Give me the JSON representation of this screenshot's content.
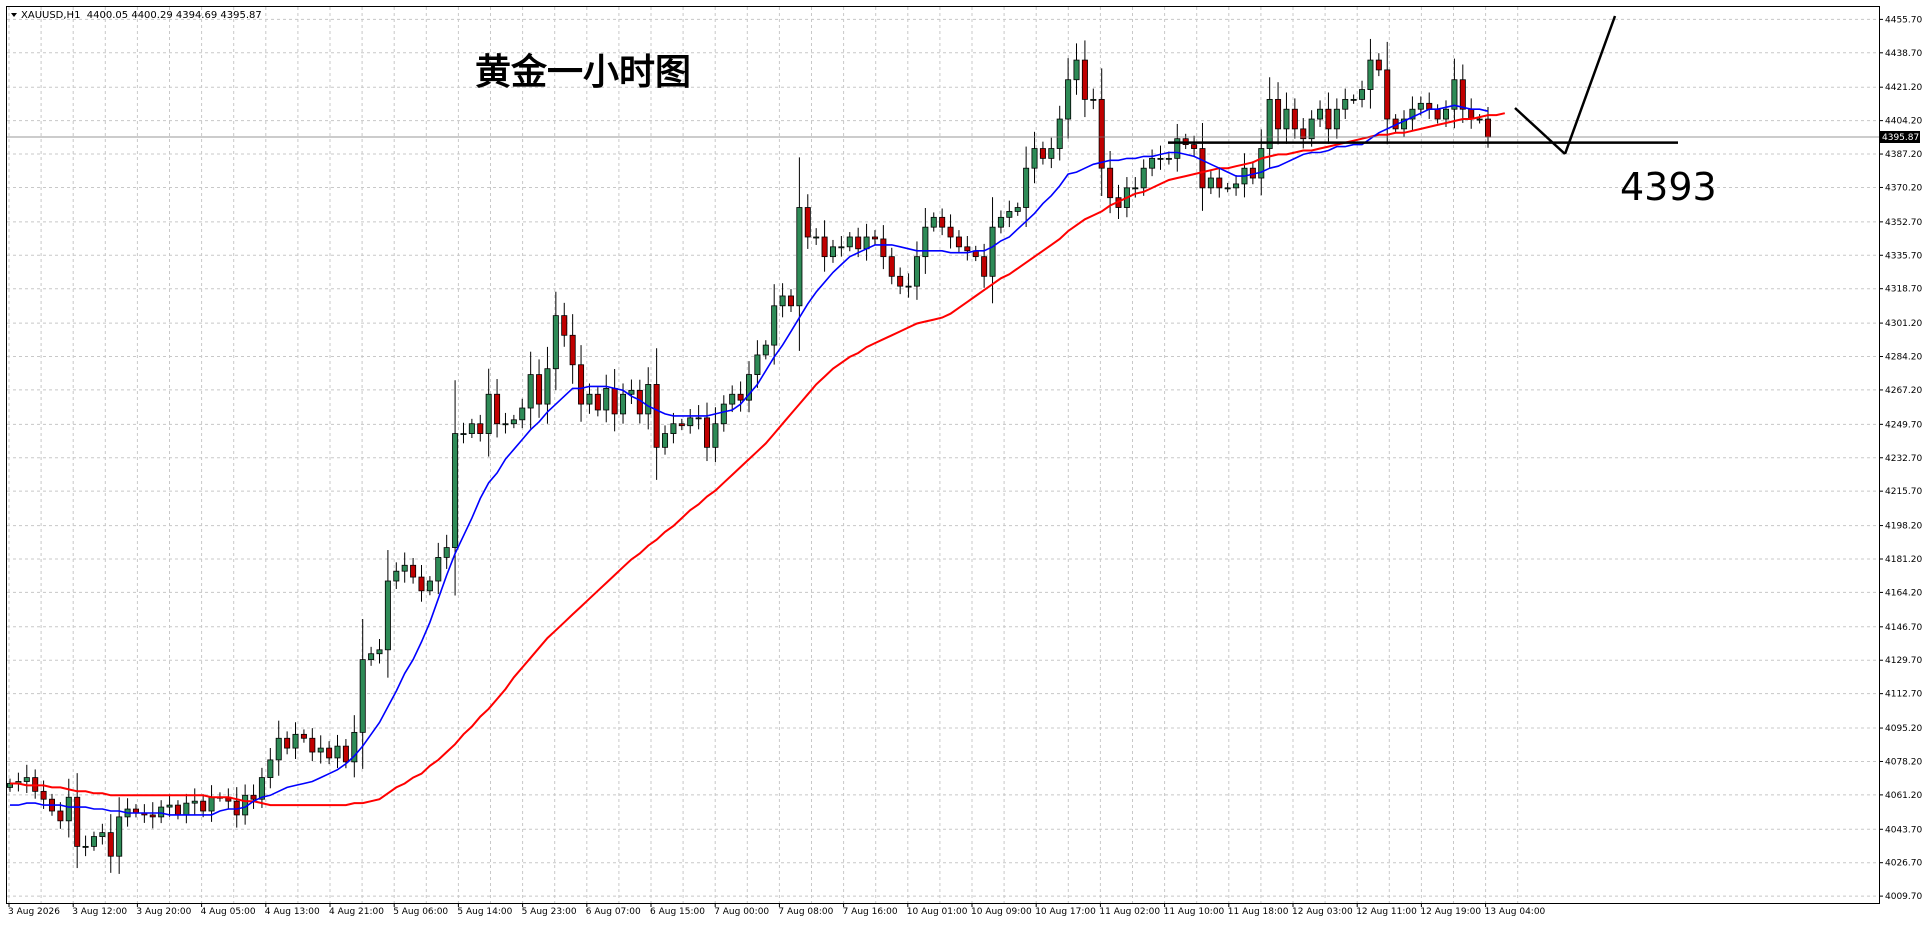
{
  "window": {
    "symbol_line": "XAUUSD,H1  4400.05 4400.29 4394.69 4395.87"
  },
  "annotations": {
    "title": "黄金一小时图",
    "level_label": "4393"
  },
  "colors": {
    "bull_body": "#2e8b57",
    "bear_body": "#c00000",
    "fast_ma": "#0000ff",
    "slow_ma": "#ff0000",
    "grid": "#c8c8c8",
    "price_tag_bg": "#000000",
    "price_tag_fg": "#ffffff"
  },
  "chart_data": {
    "type": "candlestick",
    "symbol": "XAUUSD",
    "timeframe": "H1",
    "ohlc_header": {
      "open": 4400.05,
      "high": 4400.29,
      "low": 4394.69,
      "close": 4395.87
    },
    "current_price": "4395.87",
    "ylim": [
      4006.2,
      4462.0
    ],
    "y_ticks": [
      "4455.70",
      "4438.70",
      "4421.20",
      "4404.20",
      "4387.20",
      "4370.20",
      "4352.70",
      "4335.70",
      "4318.70",
      "4301.20",
      "4284.20",
      "4267.20",
      "4249.70",
      "4232.70",
      "4215.70",
      "4198.20",
      "4181.20",
      "4164.20",
      "4146.70",
      "4129.70",
      "4112.70",
      "4095.20",
      "4078.20",
      "4061.20",
      "4043.70",
      "4026.70",
      "4009.70"
    ],
    "x_ticks": [
      "3 Aug 2026",
      "3 Aug 12:00",
      "3 Aug 20:00",
      "4 Aug 05:00",
      "4 Aug 13:00",
      "4 Aug 21:00",
      "5 Aug 06:00",
      "5 Aug 14:00",
      "5 Aug 23:00",
      "6 Aug 07:00",
      "6 Aug 15:00",
      "7 Aug 00:00",
      "7 Aug 08:00",
      "7 Aug 16:00",
      "10 Aug 01:00",
      "10 Aug 09:00",
      "10 Aug 17:00",
      "11 Aug 02:00",
      "11 Aug 10:00",
      "11 Aug 18:00",
      "12 Aug 03:00",
      "12 Aug 11:00",
      "12 Aug 19:00",
      "13 Aug 04:00"
    ],
    "closes": [
      4067,
      4068,
      4070,
      4063,
      4059,
      4053,
      4048,
      4060,
      4035,
      4035,
      4040,
      4042,
      4030,
      4050,
      4054,
      4052,
      4051,
      4050,
      4055,
      4056,
      4051,
      4057,
      4058,
      4053,
      4060,
      4060,
      4058,
      4051,
      4061,
      4059,
      4070,
      4079,
      4090,
      4085,
      4092,
      4090,
      4083,
      4085,
      4080,
      4086,
      4078,
      4093,
      4130,
      4133,
      4135,
      4170,
      4175,
      4178,
      4172,
      4165,
      4170,
      4182,
      4187,
      4245,
      4245,
      4250,
      4245,
      4265,
      4250,
      4250,
      4252,
      4258,
      4275,
      4260,
      4278,
      4305,
      4295,
      4280,
      4260,
      4265,
      4257,
      4268,
      4255,
      4265,
      4267,
      4255,
      4270,
      4238,
      4245,
      4250,
      4249,
      4253,
      4253,
      4238,
      4250,
      4260,
      4265,
      4262,
      4275,
      4285,
      4290,
      4310,
      4315,
      4310,
      4360,
      4345,
      4345,
      4335,
      4340,
      4340,
      4345,
      4339,
      4345,
      4344,
      4335,
      4325,
      4320,
      4320,
      4335,
      4350,
      4355,
      4350,
      4345,
      4340,
      4338,
      4335,
      4325,
      4350,
      4355,
      4358,
      4360,
      4380,
      4390,
      4385,
      4390,
      4405,
      4425,
      4435,
      4415,
      4415,
      4380,
      4365,
      4360,
      4370,
      4370,
      4380,
      4385,
      4385,
      4385,
      4395,
      4392,
      4390,
      4370,
      4375,
      4370,
      4370,
      4372,
      4380,
      4375,
      4390,
      4415,
      4400,
      4410,
      4400,
      4395,
      4405,
      4410,
      4400,
      4410,
      4415,
      4415,
      4420,
      4435,
      4430,
      4405,
      4400,
      4405,
      4410,
      4413,
      4410,
      4405,
      4410,
      4425,
      4410,
      4405,
      4405,
      4395.87
    ],
    "fast_ma": [
      4056,
      4056,
      4057,
      4057,
      4056,
      4056,
      4056,
      4055,
      4055,
      4055,
      4054,
      4054,
      4053,
      4053,
      4052,
      4052,
      4052,
      4052,
      4052,
      4051,
      4051,
      4051,
      4051,
      4051,
      4051,
      4053,
      4054,
      4054,
      4055,
      4058,
      4060,
      4061,
      4063,
      4065,
      4066,
      4067,
      4068,
      4070,
      4072,
      4074,
      4077,
      4081,
      4086,
      4092,
      4098,
      4106,
      4114,
      4123,
      4130,
      4139,
      4149,
      4161,
      4173,
      4184,
      4193,
      4202,
      4212,
      4220,
      4225,
      4232,
      4237,
      4242,
      4247,
      4251,
      4256,
      4260,
      4264,
      4268,
      4268,
      4269,
      4269,
      4269,
      4268,
      4267,
      4264,
      4262,
      4259,
      4257,
      4255,
      4254,
      4254,
      4254,
      4254,
      4254,
      4255,
      4256,
      4257,
      4260,
      4265,
      4270,
      4277,
      4284,
      4290,
      4297,
      4304,
      4311,
      4317,
      4322,
      4327,
      4331,
      4335,
      4337,
      4339,
      4341,
      4341,
      4341,
      4340,
      4339,
      4338,
      4338,
      4338,
      4338,
      4337,
      4337,
      4337,
      4338,
      4338,
      4340,
      4343,
      4345,
      4349,
      4353,
      4357,
      4362,
      4366,
      4371,
      4377,
      4378,
      4380,
      4382,
      4383,
      4384,
      4384,
      4385,
      4385,
      4386,
      4386,
      4387,
      4388,
      4388,
      4387,
      4386,
      4384,
      4382,
      4380,
      4378,
      4376,
      4376,
      4377,
      4378,
      4380,
      4381,
      4383,
      4385,
      4387,
      4388,
      4388,
      4389,
      4391,
      4391,
      4392,
      4392,
      4395,
      4398,
      4400,
      4402,
      4404,
      4406,
      4408,
      4410,
      4410,
      4411,
      4412,
      4411,
      4410,
      4410,
      4409
    ],
    "slow_ma": [
      4067,
      4067,
      4066,
      4066,
      4066,
      4065,
      4065,
      4064,
      4063,
      4063,
      4062,
      4062,
      4061,
      4061,
      4061,
      4061,
      4061,
      4061,
      4061,
      4061,
      4061,
      4061,
      4061,
      4061,
      4060,
      4060,
      4060,
      4059,
      4058,
      4058,
      4057,
      4056,
      4056,
      4056,
      4056,
      4056,
      4056,
      4056,
      4056,
      4056,
      4056,
      4057,
      4057,
      4058,
      4059,
      4062,
      4065,
      4067,
      4070,
      4072,
      4076,
      4079,
      4083,
      4087,
      4092,
      4096,
      4101,
      4105,
      4110,
      4115,
      4121,
      4126,
      4131,
      4136,
      4141,
      4145,
      4149,
      4153,
      4157,
      4161,
      4165,
      4169,
      4173,
      4177,
      4181,
      4184,
      4188,
      4191,
      4195,
      4198,
      4202,
      4206,
      4209,
      4213,
      4216,
      4220,
      4224,
      4228,
      4232,
      4236,
      4240,
      4245,
      4250,
      4255,
      4260,
      4265,
      4270,
      4274,
      4278,
      4281,
      4284,
      4286,
      4289,
      4291,
      4293,
      4295,
      4297,
      4299,
      4301,
      4302,
      4303,
      4304,
      4306,
      4309,
      4312,
      4315,
      4318,
      4321,
      4324,
      4326,
      4329,
      4332,
      4335,
      4338,
      4341,
      4344,
      4348,
      4351,
      4354,
      4356,
      4358,
      4361,
      4363,
      4365,
      4367,
      4368,
      4370,
      4372,
      4374,
      4375,
      4376,
      4377,
      4378,
      4379,
      4380,
      4380,
      4381,
      4382,
      4383,
      4385,
      4386,
      4387,
      4387,
      4388,
      4389,
      4389,
      4390,
      4391,
      4392,
      4393,
      4394,
      4395,
      4396,
      4397,
      4397,
      4398,
      4398,
      4399,
      4400,
      4401,
      4402,
      4403,
      4404,
      4405,
      4405,
      4406,
      4407,
      4407,
      4408
    ],
    "horizontal_level": 4393
  }
}
